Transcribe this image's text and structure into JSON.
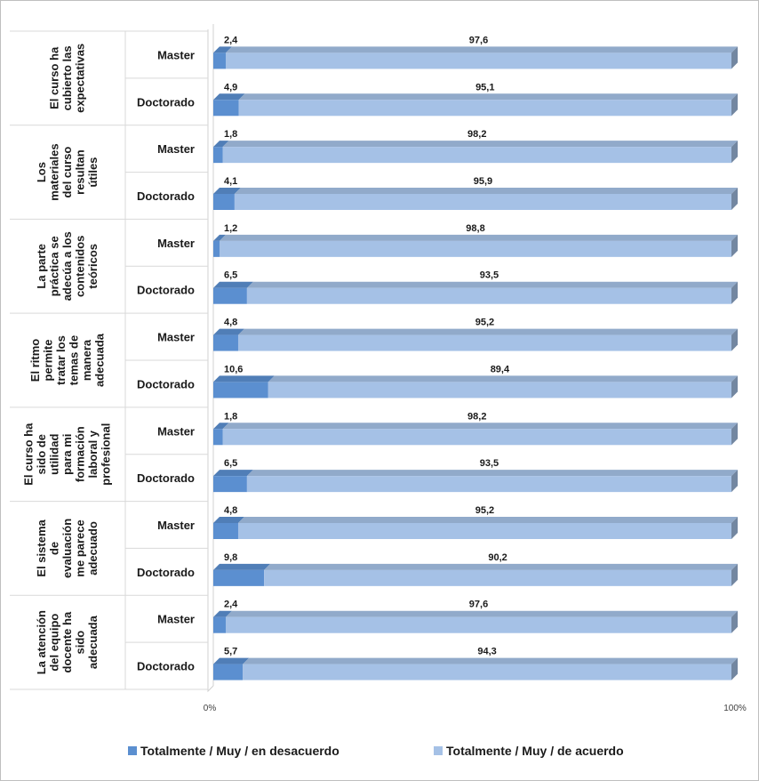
{
  "chart_data": {
    "type": "bar",
    "orientation": "horizontal",
    "stacked": "percent",
    "groups": [
      "El curso ha cubierto las expectativas",
      "Los materiales del curso resultan útiles",
      "La parte práctica se adecúa a los contenidos teóricos",
      "El ritmo permite tratar los temas de manera adecuada",
      "El curso ha sido de utilidad para mi formación laboral y profesional",
      "El sistema de evaluación me parece adecuado",
      "La atención del equipo docente ha sido adecuada"
    ],
    "subcategories": [
      "Master",
      "Doctorado"
    ],
    "series": [
      {
        "name": "Totalmente / Muy / en desacuerdo",
        "color": "#5b8fd0",
        "values": [
          [
            2.4,
            4.9
          ],
          [
            1.8,
            4.1
          ],
          [
            1.2,
            6.5
          ],
          [
            4.8,
            10.6
          ],
          [
            1.8,
            6.5
          ],
          [
            4.8,
            9.8
          ],
          [
            2.4,
            5.7
          ]
        ],
        "labels": [
          [
            "2,4",
            "4,9"
          ],
          [
            "1,8",
            "4,1"
          ],
          [
            "1,2",
            "6,5"
          ],
          [
            "4,8",
            "10,6"
          ],
          [
            "1,8",
            "6,5"
          ],
          [
            "4,8",
            "9,8"
          ],
          [
            "2,4",
            "5,7"
          ]
        ]
      },
      {
        "name": "Totalmente / Muy / de acuerdo",
        "color": "#a5c1e6",
        "values": [
          [
            97.6,
            95.1
          ],
          [
            98.2,
            95.9
          ],
          [
            98.8,
            93.5
          ],
          [
            95.2,
            89.4
          ],
          [
            98.2,
            93.5
          ],
          [
            95.2,
            90.2
          ],
          [
            97.6,
            94.3
          ]
        ],
        "labels": [
          [
            "97,6",
            "95,1"
          ],
          [
            "98,2",
            "95,9"
          ],
          [
            "98,8",
            "93,5"
          ],
          [
            "95,2",
            "89,4"
          ],
          [
            "98,2",
            "93,5"
          ],
          [
            "95,2",
            "90,2"
          ],
          [
            "97,6",
            "94,3"
          ]
        ]
      }
    ],
    "xlim": [
      0,
      100
    ],
    "x_tick_labels": [
      "0%",
      "100%"
    ],
    "legend_position": "bottom",
    "effect": "3d"
  }
}
